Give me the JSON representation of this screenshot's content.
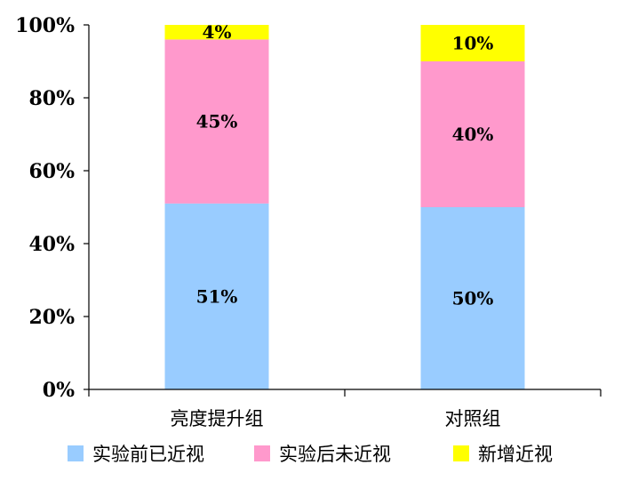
{
  "chart_data": {
    "type": "bar",
    "stacked": true,
    "percent": true,
    "title": "",
    "xlabel": "",
    "ylabel": "",
    "ylim": [
      0,
      100
    ],
    "yticks": [
      "0%",
      "20%",
      "40%",
      "60%",
      "80%",
      "100%"
    ],
    "ytick_values": [
      0,
      20,
      40,
      60,
      80,
      100
    ],
    "categories": [
      "亮度提升组",
      "对照组"
    ],
    "series": [
      {
        "name": "实验前已近视",
        "values": [
          51,
          50
        ],
        "labels": [
          "51%",
          "50%"
        ],
        "color": "#99ccff"
      },
      {
        "name": "实验后未近视",
        "values": [
          45,
          40
        ],
        "labels": [
          "45%",
          "40%"
        ],
        "color": "#ff99cc"
      },
      {
        "name": "新增近视",
        "values": [
          4,
          10
        ],
        "labels": [
          "4%",
          "10%"
        ],
        "color": "#ffff00"
      }
    ],
    "grid": false,
    "legend_position": "bottom"
  }
}
